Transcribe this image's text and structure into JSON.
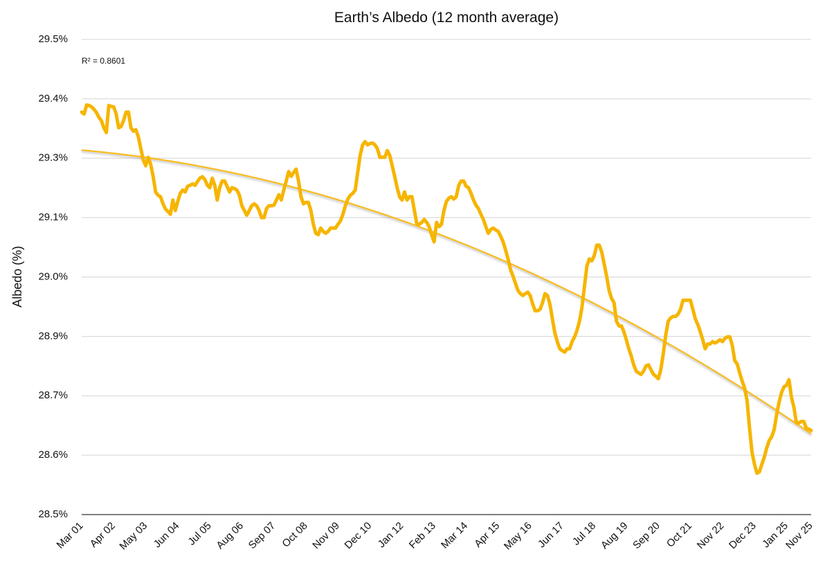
{
  "chart_data": {
    "type": "line",
    "title": "Earth’s Albedo (12 month average)",
    "y_label": "Albedo (%)",
    "annotation": "R² = 0.8601",
    "ylim": [
      28.5,
      29.5
    ],
    "yticks": [
      {
        "value": 28.5,
        "label": "28.5%"
      },
      {
        "value": 28.625,
        "label": "28.6%"
      },
      {
        "value": 28.75,
        "label": "28.7%"
      },
      {
        "value": 28.875,
        "label": "28.9%"
      },
      {
        "value": 29.0,
        "label": "29.0%"
      },
      {
        "value": 29.125,
        "label": "29.1%"
      },
      {
        "value": 29.25,
        "label": "29.3%"
      },
      {
        "value": 29.375,
        "label": "29.4%"
      },
      {
        "value": 29.5,
        "label": "29.5%"
      }
    ],
    "grid": true,
    "categories": [
      "Mar 01",
      null,
      null,
      null,
      null,
      null,
      null,
      null,
      null,
      null,
      null,
      null,
      null,
      "Apr 02",
      null,
      null,
      null,
      null,
      null,
      null,
      null,
      null,
      null,
      null,
      null,
      null,
      "May 03",
      null,
      null,
      null,
      null,
      null,
      null,
      null,
      null,
      null,
      null,
      null,
      null,
      "Jun 04",
      null,
      null,
      null,
      null,
      null,
      null,
      null,
      null,
      null,
      null,
      null,
      null,
      "Jul 05",
      null,
      null,
      null,
      null,
      null,
      null,
      null,
      null,
      null,
      null,
      null,
      null,
      "Aug 06",
      null,
      null,
      null,
      null,
      null,
      null,
      null,
      null,
      null,
      null,
      null,
      null,
      "Sep 07",
      null,
      null,
      null,
      null,
      null,
      null,
      null,
      null,
      null,
      null,
      null,
      null,
      "Oct 08",
      null,
      null,
      null,
      null,
      null,
      null,
      null,
      null,
      null,
      null,
      null,
      null,
      "Nov 09",
      null,
      null,
      null,
      null,
      null,
      null,
      null,
      null,
      null,
      null,
      null,
      null,
      "Dec 10",
      null,
      null,
      null,
      null,
      null,
      null,
      null,
      null,
      null,
      null,
      null,
      null,
      "Jan 12",
      null,
      null,
      null,
      null,
      null,
      null,
      null,
      null,
      null,
      null,
      null,
      null,
      "Feb 13",
      null,
      null,
      null,
      null,
      null,
      null,
      null,
      null,
      null,
      null,
      null,
      null,
      "Mar 14",
      null,
      null,
      null,
      null,
      null,
      null,
      null,
      null,
      null,
      null,
      null,
      null,
      "Apr 15",
      null,
      null,
      null,
      null,
      null,
      null,
      null,
      null,
      null,
      null,
      null,
      null,
      "May 16",
      null,
      null,
      null,
      null,
      null,
      null,
      null,
      null,
      null,
      null,
      null,
      null,
      "Jun 17",
      null,
      null,
      null,
      null,
      null,
      null,
      null,
      null,
      null,
      null,
      null,
      null,
      "Jul 18",
      null,
      null,
      null,
      null,
      null,
      null,
      null,
      null,
      null,
      null,
      null,
      null,
      "Aug 19",
      null,
      null,
      null,
      null,
      null,
      null,
      null,
      null,
      null,
      null,
      null,
      null,
      "Sep 20",
      null,
      null,
      null,
      null,
      null,
      null,
      null,
      null,
      null,
      null,
      null,
      null,
      "Oct 21",
      null,
      null,
      null,
      null,
      null,
      null,
      null,
      null,
      null,
      null,
      null,
      null,
      "Nov 22",
      null,
      null,
      null,
      null,
      null,
      null,
      null,
      null,
      null,
      null,
      null,
      null,
      "Dec 23",
      null,
      null,
      null,
      null,
      null,
      null,
      null,
      null,
      null,
      null,
      null,
      null,
      "Jan 25",
      null,
      null,
      null,
      null,
      null,
      null,
      null,
      null,
      null,
      "Nov 25"
    ],
    "series": [
      {
        "color": "#f6b500",
        "values": [
          29.347,
          29.343,
          29.362,
          29.361,
          29.358,
          29.353,
          29.346,
          29.336,
          29.329,
          29.314,
          29.304,
          29.361,
          29.359,
          29.358,
          29.343,
          29.314,
          29.317,
          29.329,
          29.347,
          29.347,
          29.314,
          29.307,
          29.31,
          29.295,
          29.27,
          29.246,
          29.234,
          29.252,
          29.237,
          29.212,
          29.179,
          29.172,
          29.169,
          29.154,
          29.143,
          29.138,
          29.132,
          29.162,
          29.14,
          29.159,
          29.176,
          29.183,
          29.179,
          29.191,
          29.193,
          29.196,
          29.193,
          29.201,
          29.208,
          29.211,
          29.205,
          29.193,
          29.188,
          29.208,
          29.193,
          29.162,
          29.188,
          29.202,
          29.202,
          29.191,
          29.179,
          29.188,
          29.186,
          29.183,
          29.172,
          29.15,
          29.14,
          29.13,
          29.14,
          29.15,
          29.154,
          29.15,
          29.14,
          29.125,
          29.125,
          29.144,
          29.15,
          29.15,
          29.151,
          29.162,
          29.173,
          29.162,
          29.183,
          29.202,
          29.222,
          29.212,
          29.22,
          29.227,
          29.202,
          29.169,
          29.154,
          29.157,
          29.157,
          29.14,
          29.111,
          29.092,
          29.089,
          29.103,
          29.096,
          29.092,
          29.096,
          29.103,
          29.103,
          29.103,
          29.111,
          29.118,
          29.132,
          29.15,
          29.164,
          29.172,
          29.176,
          29.183,
          29.22,
          29.256,
          29.278,
          29.285,
          29.278,
          29.281,
          29.282,
          29.278,
          29.27,
          29.252,
          29.252,
          29.252,
          29.266,
          29.256,
          29.234,
          29.212,
          29.188,
          29.169,
          29.162,
          29.179,
          29.162,
          29.169,
          29.169,
          29.14,
          29.111,
          29.111,
          29.115,
          29.121,
          29.115,
          29.106,
          29.089,
          29.074,
          29.115,
          29.106,
          29.111,
          29.14,
          29.159,
          29.166,
          29.169,
          29.164,
          29.169,
          29.193,
          29.202,
          29.202,
          29.191,
          29.188,
          29.176,
          29.162,
          29.151,
          29.144,
          29.132,
          29.121,
          29.106,
          29.092,
          29.1,
          29.103,
          29.099,
          29.096,
          29.086,
          29.074,
          29.057,
          29.038,
          29.016,
          29.002,
          28.987,
          28.972,
          28.965,
          28.961,
          28.965,
          28.968,
          28.961,
          28.943,
          28.929,
          28.929,
          28.932,
          28.946,
          28.965,
          28.961,
          28.943,
          28.912,
          28.882,
          28.864,
          28.849,
          28.845,
          28.842,
          28.849,
          28.849,
          28.864,
          28.874,
          28.888,
          28.907,
          28.936,
          28.98,
          29.023,
          29.038,
          29.034,
          29.045,
          29.067,
          29.067,
          29.053,
          29.028,
          29.002,
          28.972,
          28.955,
          28.946,
          28.907,
          28.897,
          28.897,
          28.885,
          28.868,
          28.849,
          28.834,
          28.815,
          28.802,
          28.798,
          28.795,
          28.802,
          28.813,
          28.815,
          28.805,
          28.795,
          28.791,
          28.786,
          28.805,
          28.839,
          28.878,
          28.907,
          28.914,
          28.917,
          28.917,
          28.922,
          28.932,
          28.951,
          28.951,
          28.951,
          28.951,
          28.932,
          28.912,
          28.9,
          28.885,
          28.868,
          28.849,
          28.859,
          28.859,
          28.864,
          28.861,
          28.864,
          28.868,
          28.864,
          28.871,
          28.874,
          28.874,
          28.856,
          28.824,
          28.817,
          28.798,
          28.781,
          28.766,
          28.74,
          28.682,
          28.631,
          28.606,
          28.587,
          28.59,
          28.606,
          28.621,
          28.641,
          28.656,
          28.664,
          28.679,
          28.711,
          28.737,
          28.757,
          28.769,
          28.772,
          28.784,
          28.747,
          28.726,
          28.693,
          28.693,
          28.696,
          28.696,
          28.682,
          28.68,
          28.677
        ]
      }
    ],
    "trendline": {
      "type": "polynomial",
      "color": "#f8bc1c",
      "coefficients": [
        29.267,
        -0.135,
        -0.462
      ]
    }
  }
}
